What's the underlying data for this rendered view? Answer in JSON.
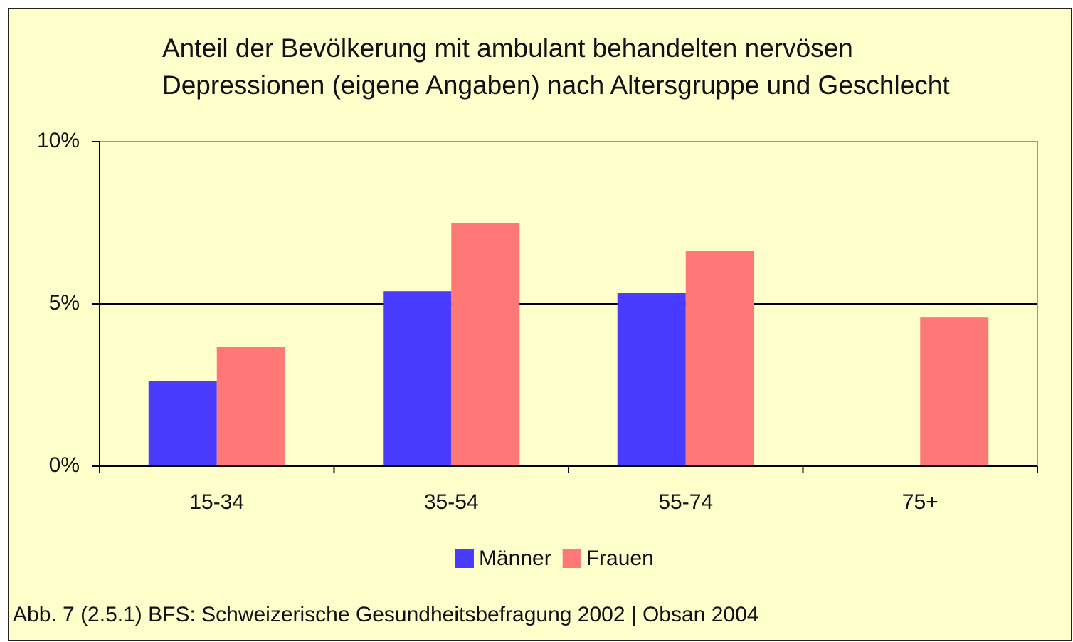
{
  "chart_data": {
    "type": "bar",
    "title": "Anteil der Bevölkerung mit ambulant behandelten nervösen Depressionen (eigene Angaben) nach Altersgruppe und Geschlecht",
    "categories": [
      "15-34",
      "35-54",
      "55-74",
      "75+"
    ],
    "series": [
      {
        "name": "Männer",
        "color": "#4a3cff",
        "values": [
          2.63,
          5.39,
          5.35,
          null
        ]
      },
      {
        "name": "Frauen",
        "color": "#ff7878",
        "values": [
          3.68,
          7.5,
          6.64,
          4.58
        ]
      }
    ],
    "ylim": [
      0,
      10
    ],
    "yticks": [
      {
        "value": 0,
        "label": "0%"
      },
      {
        "value": 5,
        "label": "5%"
      },
      {
        "value": 10,
        "label": "10%"
      }
    ],
    "grid": true,
    "legend": "bottom",
    "source": "Abb. 7 (2.5.1) BFS: Schweizerische Gesundheitsbefragung 2002 | Obsan 2004"
  }
}
